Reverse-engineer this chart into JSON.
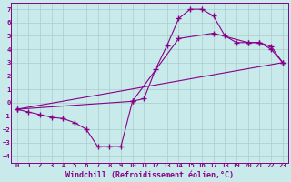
{
  "background_color": "#c8eaea",
  "grid_color": "#aacccc",
  "line_color": "#880088",
  "marker_color": "#880088",
  "xlabel": "Windchill (Refroidissement éolien,°C)",
  "xlim": [
    -0.5,
    23.5
  ],
  "ylim": [
    -4.5,
    7.5
  ],
  "yticks": [
    -4,
    -3,
    -2,
    -1,
    0,
    1,
    2,
    3,
    4,
    5,
    6,
    7
  ],
  "xticks": [
    0,
    1,
    2,
    3,
    4,
    5,
    6,
    7,
    8,
    9,
    10,
    11,
    12,
    13,
    14,
    15,
    16,
    17,
    18,
    19,
    20,
    21,
    22,
    23
  ],
  "line1_x": [
    0,
    1,
    2,
    3,
    4,
    5,
    6,
    7,
    8,
    9,
    10,
    11,
    12,
    13,
    14,
    15,
    16,
    17,
    18,
    19,
    20,
    21,
    22,
    23
  ],
  "line1_y": [
    -0.5,
    -0.7,
    -0.9,
    -1.1,
    -1.2,
    -1.5,
    -2.0,
    -3.3,
    -3.3,
    -3.3,
    0.1,
    0.3,
    2.5,
    4.3,
    6.3,
    7.0,
    7.0,
    6.5,
    5.0,
    4.5,
    4.5,
    4.5,
    4.0,
    3.0
  ],
  "line2_x": [
    0,
    10,
    14,
    17,
    20,
    21,
    22,
    23
  ],
  "line2_y": [
    -0.5,
    0.1,
    4.8,
    5.2,
    4.5,
    4.5,
    4.2,
    3.0
  ],
  "line3_x": [
    0,
    23
  ],
  "line3_y": [
    -0.5,
    3.0
  ],
  "font_color": "#880088",
  "tick_fontsize": 5.2,
  "xlabel_fontsize": 6.0
}
